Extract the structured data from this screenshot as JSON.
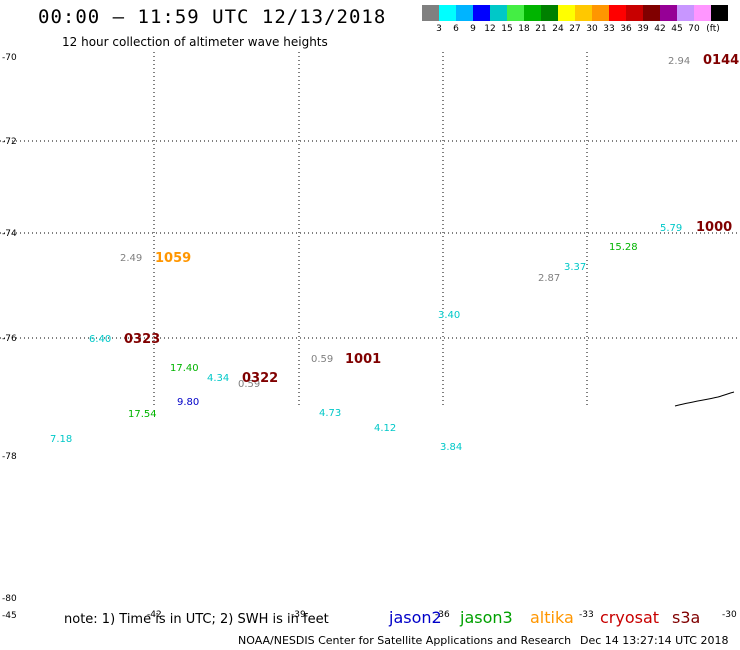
{
  "header": {
    "title": "00:00 – 11:59 UTC 12/13/2018",
    "subtitle": "12 hour collection of altimeter wave heights"
  },
  "scale": {
    "colors": [
      "#808080",
      "#00ffff",
      "#00b4ff",
      "#0000ff",
      "#00c8c8",
      "#44ee44",
      "#00b400",
      "#008000",
      "#ffff00",
      "#ffc800",
      "#ff9600",
      "#ff0000",
      "#c80000",
      "#800000",
      "#960096",
      "#c896ff",
      "#ff96ff",
      "#000000"
    ],
    "labels": [
      "3",
      "6",
      "9",
      "12",
      "15",
      "18",
      "21",
      "24",
      "27",
      "30",
      "33",
      "36",
      "39",
      "42",
      "45",
      "70",
      "(ft)"
    ]
  },
  "axes": {
    "lat_labels": [
      "-70",
      "-72",
      "-74",
      "-76",
      "-78",
      "-80"
    ],
    "lon_labels": [
      "-45",
      "-42",
      "-39",
      "-36",
      "-33",
      "-30"
    ]
  },
  "observations": [
    {
      "text": "2.94",
      "color": "#808080"
    },
    {
      "text": "0144",
      "color": "#800000",
      "bold": true
    },
    {
      "text": "5.79",
      "color": "#00c8c8"
    },
    {
      "text": "1000",
      "color": "#800000",
      "bold": true
    },
    {
      "text": "15.28",
      "color": "#00b400"
    },
    {
      "text": "3.37",
      "color": "#00c8c8"
    },
    {
      "text": "2.87",
      "color": "#808080"
    },
    {
      "text": "3.40",
      "color": "#00c8c8"
    },
    {
      "text": "2.49",
      "color": "#808080"
    },
    {
      "text": "1059",
      "color": "#ff9600",
      "bold": true
    },
    {
      "text": "6.40",
      "color": "#00c8c8"
    },
    {
      "text": "0323",
      "color": "#800000",
      "bold": true
    },
    {
      "text": "0.59",
      "color": "#808080"
    },
    {
      "text": "1001",
      "color": "#800000",
      "bold": true
    },
    {
      "text": "17.40",
      "color": "#00b400"
    },
    {
      "text": "4.34",
      "color": "#00c8c8"
    },
    {
      "text": "0.59",
      "color": "#808080"
    },
    {
      "text": "0322",
      "color": "#800000",
      "bold": true
    },
    {
      "text": "9.80",
      "color": "#0000c8"
    },
    {
      "text": "17.54",
      "color": "#00b400"
    },
    {
      "text": "4.73",
      "color": "#00c8c8"
    },
    {
      "text": "4.12",
      "color": "#00c8c8"
    },
    {
      "text": "7.18",
      "color": "#00c8c8"
    },
    {
      "text": "3.84",
      "color": "#00c8c8"
    }
  ],
  "footer": {
    "note": "note: 1) Time is in UTC; 2) SWH is in feet",
    "satellites": [
      {
        "name": "jason2",
        "color": "#0000c8"
      },
      {
        "name": "jason3",
        "color": "#00a000"
      },
      {
        "name": "altika",
        "color": "#ff9600"
      },
      {
        "name": "cryosat",
        "color": "#c80000"
      },
      {
        "name": "s3a",
        "color": "#800000"
      }
    ],
    "credit": "NOAA/NESDIS Center for Satellite Applications and Research",
    "timestamp": "Dec 14 13:27:14 UTC 2018"
  }
}
